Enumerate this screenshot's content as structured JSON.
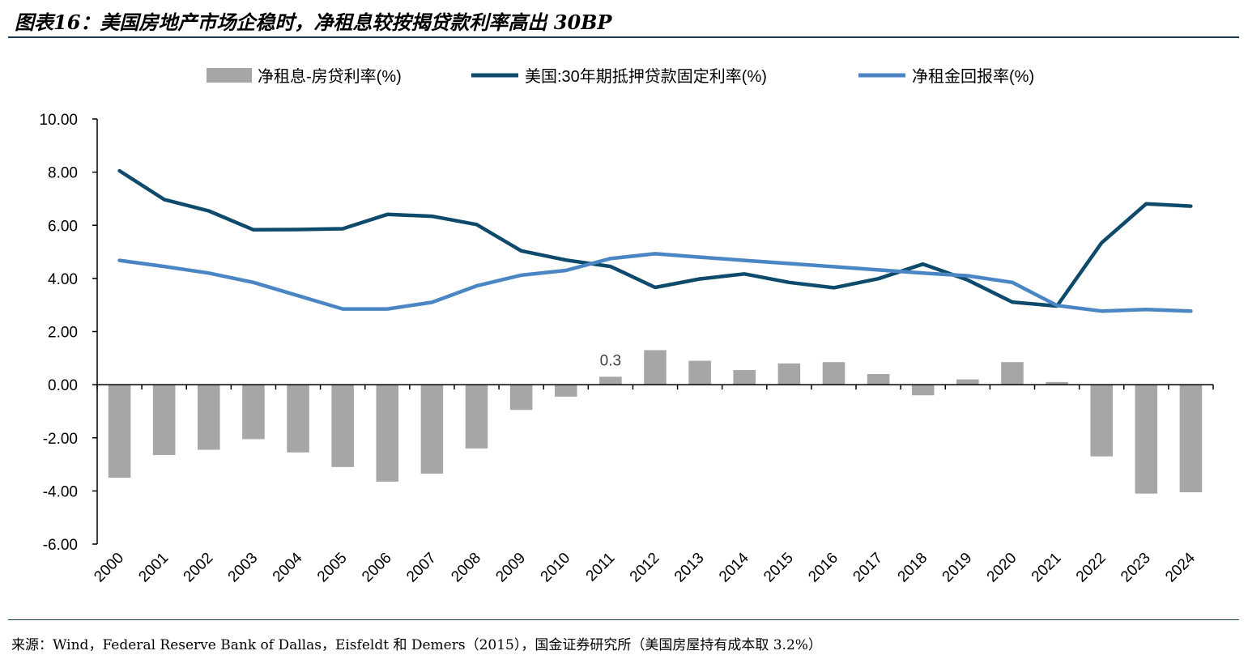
{
  "header": {
    "title": "图表16：美国房地产市场企稳时，净租息较按揭贷款利率高出 30BP"
  },
  "footer": {
    "source": "来源：Wind，Federal Reserve Bank of Dallas，Eisfeldt 和 Demers（2015），国金证券研究所（美国房屋持有成本取 3.2%）"
  },
  "colors": {
    "bar": "#a6a6a6",
    "mortgage": "#0d4a6b",
    "rent": "#4a86c4",
    "axis": "#000000"
  },
  "chart_data": {
    "type": "bar+line",
    "categories": [
      "2000",
      "2001",
      "2002",
      "2003",
      "2004",
      "2005",
      "2006",
      "2007",
      "2008",
      "2009",
      "2010",
      "2011",
      "2012",
      "2013",
      "2014",
      "2015",
      "2016",
      "2017",
      "2018",
      "2019",
      "2020",
      "2021",
      "2022",
      "2023",
      "2024"
    ],
    "ylim": [
      -6,
      10
    ],
    "yticks": [
      -6,
      -4,
      -2,
      0,
      2,
      4,
      6,
      8,
      10
    ],
    "ytick_labels": [
      "-6.00",
      "-4.00",
      "-2.00",
      "0.00",
      "2.00",
      "4.00",
      "6.00",
      "8.00",
      "10.00"
    ],
    "series": [
      {
        "name": "净租息-房贷利率(%)",
        "kind": "bar",
        "values": [
          -3.5,
          -2.65,
          -2.45,
          -2.05,
          -2.55,
          -3.1,
          -3.65,
          -3.35,
          -2.4,
          -0.95,
          -0.45,
          0.3,
          1.3,
          0.9,
          0.55,
          0.8,
          0.85,
          0.4,
          -0.4,
          0.2,
          0.85,
          0.1,
          -2.7,
          -4.1,
          -4.05
        ]
      },
      {
        "name": "美国:30年期抵押贷款固定利率(%)",
        "kind": "line",
        "values": [
          8.05,
          6.97,
          6.54,
          5.83,
          5.84,
          5.87,
          6.41,
          6.34,
          6.03,
          5.04,
          4.69,
          4.45,
          3.66,
          3.98,
          4.17,
          3.85,
          3.65,
          3.99,
          4.54,
          3.94,
          3.11,
          2.96,
          5.34,
          6.81,
          6.72
        ]
      },
      {
        "name": "净租金回报率(%)",
        "kind": "line",
        "values": [
          4.68,
          4.45,
          4.2,
          3.85,
          3.35,
          2.85,
          2.85,
          3.1,
          3.72,
          4.12,
          4.3,
          4.75,
          4.93,
          4.8,
          4.68,
          4.56,
          4.44,
          4.32,
          4.2,
          4.1,
          3.85,
          2.98,
          2.77,
          2.83,
          2.77
        ]
      }
    ],
    "annotations": [
      {
        "category": "2011",
        "text": "0.3"
      }
    ]
  }
}
